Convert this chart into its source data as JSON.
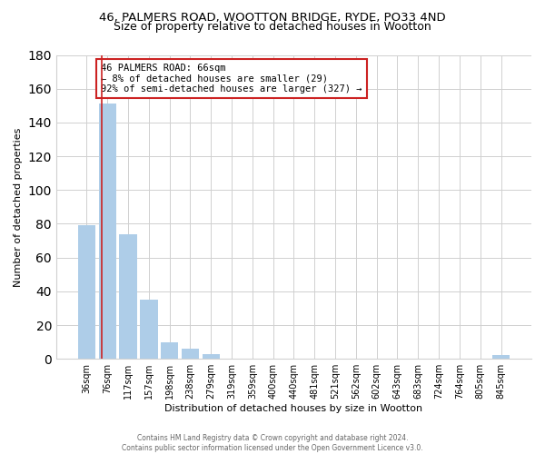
{
  "title1": "46, PALMERS ROAD, WOOTTON BRIDGE, RYDE, PO33 4ND",
  "title2": "Size of property relative to detached houses in Wootton",
  "xlabel": "Distribution of detached houses by size in Wootton",
  "ylabel": "Number of detached properties",
  "bar_labels": [
    "36sqm",
    "76sqm",
    "117sqm",
    "157sqm",
    "198sqm",
    "238sqm",
    "279sqm",
    "319sqm",
    "359sqm",
    "400sqm",
    "440sqm",
    "481sqm",
    "521sqm",
    "562sqm",
    "602sqm",
    "643sqm",
    "683sqm",
    "724sqm",
    "764sqm",
    "805sqm",
    "845sqm"
  ],
  "bar_values": [
    79,
    151,
    74,
    35,
    10,
    6,
    3,
    0,
    0,
    0,
    0,
    0,
    0,
    0,
    0,
    0,
    0,
    0,
    0,
    0,
    2
  ],
  "bar_color": "#aecde8",
  "annotation_box_text": "46 PALMERS ROAD: 66sqm\n← 8% of detached houses are smaller (29)\n92% of semi-detached houses are larger (327) →",
  "red_line_x": 0.75,
  "ylim": [
    0,
    180
  ],
  "yticks": [
    0,
    20,
    40,
    60,
    80,
    100,
    120,
    140,
    160,
    180
  ],
  "footer_line1": "Contains HM Land Registry data © Crown copyright and database right 2024.",
  "footer_line2": "Contains public sector information licensed under the Open Government Licence v3.0.",
  "background_color": "#ffffff",
  "grid_color": "#d0d0d0",
  "annotation_box_bg": "#ffffff",
  "annotation_box_edge": "#cc2222",
  "red_line_color": "#cc2222",
  "title1_fontsize": 9.5,
  "title2_fontsize": 9,
  "axis_label_fontsize": 8,
  "tick_fontsize": 7,
  "annotation_fontsize": 7.5,
  "footer_fontsize": 5.5
}
